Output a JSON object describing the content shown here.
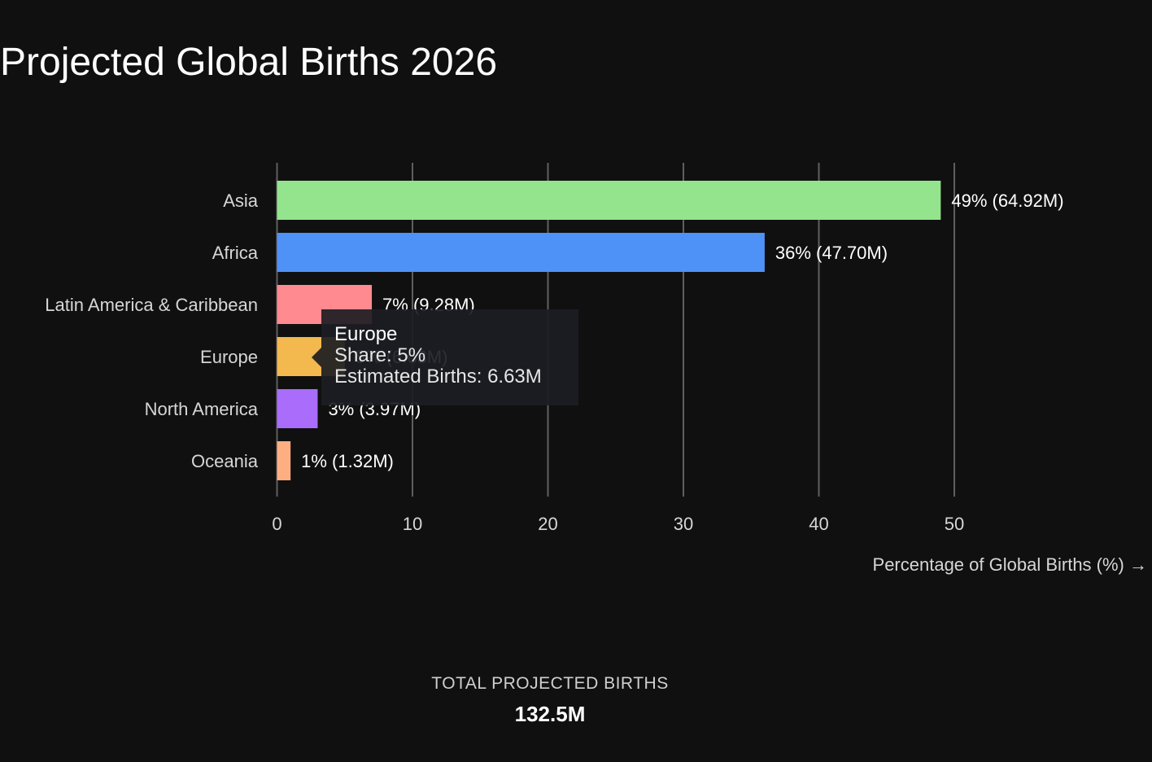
{
  "page": {
    "title": "Projected Global Births 2026"
  },
  "chart_data": {
    "type": "bar",
    "orientation": "horizontal",
    "title": "Projected Global Births 2026",
    "xlabel": "Percentage of Global Births (%) →",
    "ylabel": "",
    "xlim": [
      0,
      55
    ],
    "xticks": [
      0,
      10,
      20,
      30,
      40,
      50
    ],
    "grid": true,
    "categories": [
      "Asia",
      "Africa",
      "Latin America & Caribbean",
      "Europe",
      "North America",
      "Oceania"
    ],
    "values": [
      49,
      36,
      7,
      5,
      3,
      1
    ],
    "births_millions": [
      64.92,
      47.7,
      9.28,
      6.63,
      3.97,
      1.32
    ],
    "data_labels": [
      "49% (64.92M)",
      "36% (47.70M)",
      "7% (9.28M)",
      "5% (6.63M)",
      "3% (3.97M)",
      "1% (1.32M)"
    ],
    "colors": [
      "#93e48d",
      "#4f92f7",
      "#ff8a8f",
      "#f3b84e",
      "#a96cfb",
      "#ffae82"
    ]
  },
  "tooltip": {
    "title": "Europe",
    "share": "Share: 5%",
    "births": "Estimated Births: 6.63M"
  },
  "summary": {
    "label": "TOTAL PROJECTED BIRTHS",
    "value": "132.5M"
  }
}
